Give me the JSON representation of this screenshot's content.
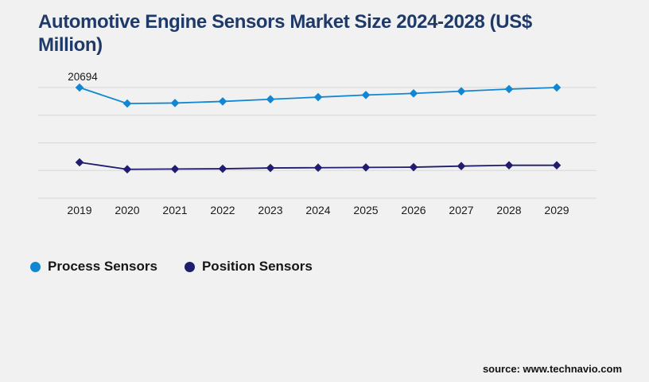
{
  "title": "Automotive Engine Sensors Market Size 2024-2028 (US$ Million)",
  "source": "source: www.technavio.com",
  "colors": {
    "background": "#f1f1f1",
    "title": "#1f3a68",
    "gridline": "#d7d7d7",
    "text": "#1a1a1a",
    "process_series": "#1187d3",
    "position_series": "#201c6e"
  },
  "legend": {
    "items": [
      {
        "label": "Process Sensors",
        "color": "#1187d3"
      },
      {
        "label": "Position Sensors",
        "color": "#201c6e"
      }
    ]
  },
  "chart_data": {
    "type": "line",
    "title": "Automotive Engine Sensors Market Size 2024-2028 (US$ Million)",
    "ylabel": "US$ Million",
    "xlabel": "",
    "x": [
      "2019",
      "2020",
      "2021",
      "2022",
      "2023",
      "2024",
      "2025",
      "2026",
      "2027",
      "2028",
      "2029"
    ],
    "series": [
      {
        "name": "Process Sensors",
        "color": "#1187d3",
        "marker": "diamond",
        "values": [
          20694,
          17700,
          17800,
          18100,
          18500,
          18900,
          19300,
          19600,
          20000,
          20400,
          20694
        ]
      },
      {
        "name": "Position Sensors",
        "color": "#201c6e",
        "marker": "diamond",
        "values": [
          6700,
          5400,
          5450,
          5500,
          5650,
          5700,
          5750,
          5800,
          6000,
          6150,
          6150
        ]
      }
    ],
    "data_labels": [
      {
        "series": "Process Sensors",
        "x": "2019",
        "text": "20694"
      }
    ],
    "ylim": [
      0,
      20694
    ],
    "grid": true,
    "gridline_count": 5,
    "legend_position": "bottom-left"
  }
}
